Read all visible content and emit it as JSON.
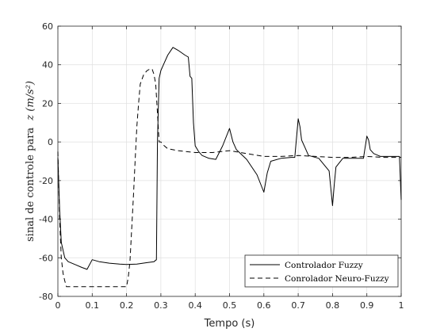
{
  "chart_data": {
    "type": "line",
    "title": "",
    "xlabel": "Tempo (s)",
    "ylabel_text": "sinal de controle para",
    "ylabel_math": "z (m/s²)",
    "xlim": [
      0,
      1
    ],
    "ylim": [
      -80,
      60
    ],
    "x_ticks": [
      0,
      0.1,
      0.2,
      0.3,
      0.4,
      0.5,
      0.6,
      0.7,
      0.8,
      0.9,
      1
    ],
    "x_tick_labels": [
      "0",
      "0.1",
      "0.2",
      "0.3",
      "0.4",
      "0.5",
      "0.6",
      "0.7",
      "0.8",
      "0.9",
      "1"
    ],
    "y_ticks": [
      -80,
      -60,
      -40,
      -20,
      0,
      20,
      40,
      60
    ],
    "y_tick_labels": [
      "-80",
      "-60",
      "-40",
      "-20",
      "0",
      "20",
      "40",
      "60"
    ],
    "grid": true,
    "legend_position": "bottom-right",
    "series": [
      {
        "name": "Controlador Fuzzy",
        "style": "solid",
        "color": "#000000",
        "points": [
          [
            0,
            -8
          ],
          [
            0.005,
            -35
          ],
          [
            0.01,
            -52
          ],
          [
            0.02,
            -60
          ],
          [
            0.03,
            -62
          ],
          [
            0.05,
            -63.5
          ],
          [
            0.07,
            -65
          ],
          [
            0.085,
            -66
          ],
          [
            0.1,
            -61
          ],
          [
            0.12,
            -62
          ],
          [
            0.15,
            -62.8
          ],
          [
            0.18,
            -63.3
          ],
          [
            0.2,
            -63.5
          ],
          [
            0.23,
            -63.3
          ],
          [
            0.26,
            -62.5
          ],
          [
            0.28,
            -62
          ],
          [
            0.287,
            -61
          ],
          [
            0.29,
            0
          ],
          [
            0.295,
            33
          ],
          [
            0.3,
            37
          ],
          [
            0.31,
            41
          ],
          [
            0.32,
            45
          ],
          [
            0.335,
            49
          ],
          [
            0.35,
            47.5
          ],
          [
            0.37,
            45
          ],
          [
            0.38,
            44
          ],
          [
            0.385,
            34
          ],
          [
            0.39,
            33
          ],
          [
            0.395,
            10
          ],
          [
            0.4,
            -2
          ],
          [
            0.41,
            -5
          ],
          [
            0.42,
            -7
          ],
          [
            0.44,
            -8.5
          ],
          [
            0.46,
            -9
          ],
          [
            0.48,
            -2
          ],
          [
            0.5,
            7
          ],
          [
            0.51,
            0
          ],
          [
            0.52,
            -4
          ],
          [
            0.55,
            -9
          ],
          [
            0.58,
            -17
          ],
          [
            0.6,
            -26
          ],
          [
            0.61,
            -16
          ],
          [
            0.62,
            -10
          ],
          [
            0.65,
            -8.5
          ],
          [
            0.68,
            -8
          ],
          [
            0.69,
            -8
          ],
          [
            0.7,
            12
          ],
          [
            0.705,
            8
          ],
          [
            0.71,
            1
          ],
          [
            0.72,
            -3
          ],
          [
            0.73,
            -7
          ],
          [
            0.76,
            -8.5
          ],
          [
            0.79,
            -15
          ],
          [
            0.8,
            -33
          ],
          [
            0.805,
            -22
          ],
          [
            0.81,
            -13
          ],
          [
            0.83,
            -8.5
          ],
          [
            0.86,
            -8.5
          ],
          [
            0.89,
            -8.5
          ],
          [
            0.9,
            3
          ],
          [
            0.905,
            1
          ],
          [
            0.91,
            -4
          ],
          [
            0.92,
            -6
          ],
          [
            0.94,
            -7.5
          ],
          [
            0.97,
            -7.5
          ],
          [
            0.995,
            -7.5
          ],
          [
            1.0,
            -30
          ]
        ]
      },
      {
        "name": "Conrolador Neuro-Fuzzy",
        "style": "dashed",
        "color": "#000000",
        "points": [
          [
            0,
            -5
          ],
          [
            0.005,
            -40
          ],
          [
            0.01,
            -60
          ],
          [
            0.015,
            -68
          ],
          [
            0.02,
            -72
          ],
          [
            0.025,
            -75
          ],
          [
            0.05,
            -75
          ],
          [
            0.1,
            -75
          ],
          [
            0.15,
            -75
          ],
          [
            0.2,
            -75
          ],
          [
            0.205,
            -70
          ],
          [
            0.21,
            -62
          ],
          [
            0.215,
            -45
          ],
          [
            0.22,
            -28
          ],
          [
            0.225,
            -10
          ],
          [
            0.23,
            8
          ],
          [
            0.235,
            20
          ],
          [
            0.24,
            30
          ],
          [
            0.25,
            35
          ],
          [
            0.26,
            37
          ],
          [
            0.27,
            38
          ],
          [
            0.275,
            37.5
          ],
          [
            0.28,
            35
          ],
          [
            0.285,
            30
          ],
          [
            0.29,
            15
          ],
          [
            0.295,
            0
          ],
          [
            0.3,
            0
          ],
          [
            0.31,
            -2
          ],
          [
            0.32,
            -3.5
          ],
          [
            0.35,
            -4.5
          ],
          [
            0.4,
            -5.5
          ],
          [
            0.45,
            -5.5
          ],
          [
            0.5,
            -4.5
          ],
          [
            0.55,
            -6
          ],
          [
            0.6,
            -7.5
          ],
          [
            0.65,
            -7.5
          ],
          [
            0.7,
            -7
          ],
          [
            0.75,
            -7.5
          ],
          [
            0.8,
            -8
          ],
          [
            0.85,
            -8
          ],
          [
            0.9,
            -7.5
          ],
          [
            0.95,
            -8
          ],
          [
            0.99,
            -8
          ],
          [
            1.0,
            -8
          ]
        ]
      }
    ]
  }
}
